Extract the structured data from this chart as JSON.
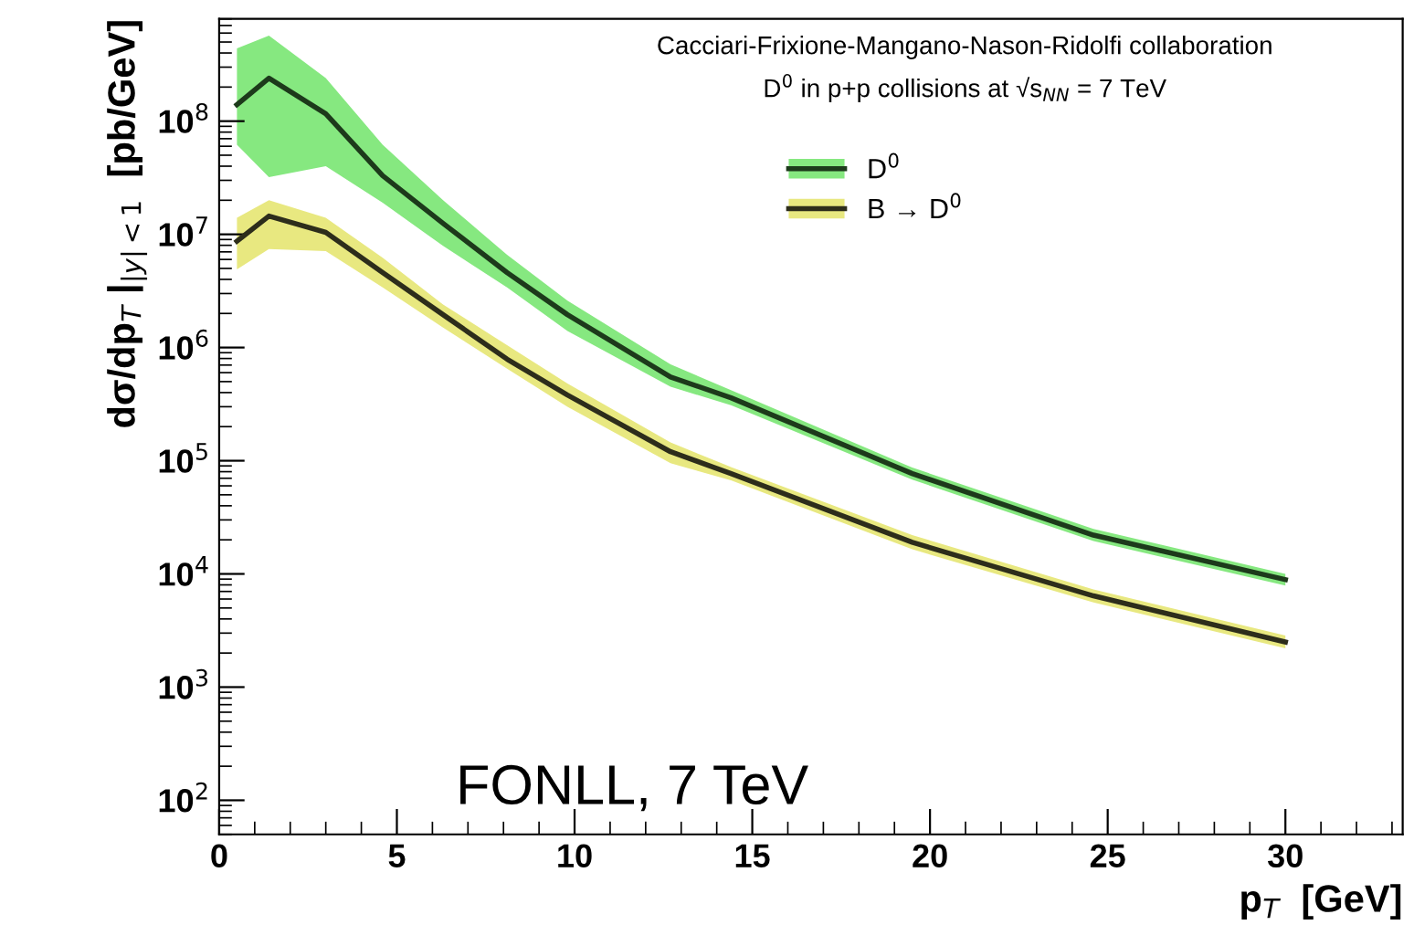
{
  "chart_data": {
    "type": "line",
    "xlabel": "p$_{T}$  [GeV]",
    "ylabel": "dσ/dp$_{T}$ |$_{|y|<1}$  [pb/GeV]",
    "annotations": [
      "Cacciari-Frixione-Mangano-Nason-Ridolfi collaboration",
      "D$^{0}$ in p+p collisions at √s$_{NN}$ = 7 TeV",
      "FONLL, 7 TeV"
    ],
    "log": "y",
    "xlim": [
      0,
      33.3
    ],
    "ylim": [
      50,
      800000000.0
    ],
    "xticks": [
      0,
      5,
      10,
      15,
      20,
      25,
      30
    ],
    "yticks": [
      {
        "value": 100,
        "label": "10$^{2}$"
      },
      {
        "value": 1000,
        "label": "10$^{3}$"
      },
      {
        "value": 10000,
        "label": "10$^{4}$"
      },
      {
        "value": 100000,
        "label": "10$^{5}$"
      },
      {
        "value": 1000000,
        "label": "10$^{6}$"
      },
      {
        "value": 10000000,
        "label": "10$^{7}$"
      },
      {
        "value": 100000000,
        "label": "10$^{8}$"
      }
    ],
    "grid": false,
    "legend": "top right",
    "series": [
      {
        "name": "D$^{0}$",
        "color": "#1d3a1b",
        "x": [
          0.5,
          1.4,
          3,
          4.6,
          6.3,
          8.1,
          9.8,
          12.7,
          14.4,
          19.5,
          24.6,
          30
        ],
        "values": [
          140000000.0,
          240000000.0,
          116000000.0,
          33000000.0,
          12500000.0,
          4600000.0,
          1950000.0,
          550000.0,
          360000.0,
          77000.0,
          22000.0,
          8900.0
        ],
        "lower": [
          62000000.0,
          32000000.0,
          40000000.0,
          19000000.0,
          7900000.0,
          3400000.0,
          1400000.0,
          450000.0,
          310000.0,
          68000.0,
          19500.0,
          7900.0
        ],
        "upper": [
          440000000.0,
          570000000.0,
          240000000.0,
          62000000.0,
          20000000.0,
          6600000.0,
          2600000.0,
          710000.0,
          420000.0,
          87000.0,
          25000.0,
          10000.0
        ]
      },
      {
        "name": "B → D$^{0}$",
        "color": "#2d2d1b",
        "x": [
          0.5,
          1.4,
          3,
          4.6,
          6.3,
          8.1,
          9.8,
          12.7,
          14.4,
          19.5,
          24.6,
          30
        ],
        "values": [
          8700000.0,
          14500000.0,
          10400000.0,
          4600000.0,
          1950000.0,
          790000.0,
          380000.0,
          120000.0,
          77000.0,
          19000.0,
          6400.0,
          2500.0
        ],
        "lower": [
          4900000.0,
          7400000.0,
          7100000.0,
          3400000.0,
          1500000.0,
          650000.0,
          300000.0,
          95000.0,
          67000.0,
          16500.0,
          5600.0,
          2200.0
        ],
        "upper": [
          14000000.0,
          20000000.0,
          14000000.0,
          6200000.0,
          2400000.0,
          1050000.0,
          480000.0,
          145000.0,
          88000.0,
          22000.0,
          7300.0,
          2850.0
        ]
      }
    ]
  }
}
